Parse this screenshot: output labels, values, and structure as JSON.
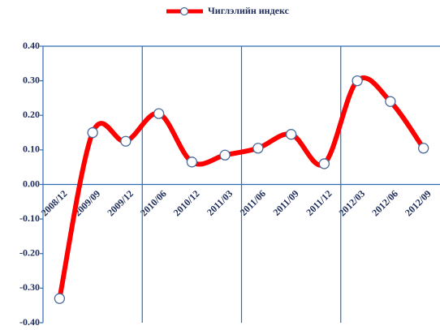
{
  "chart_data": {
    "type": "line",
    "categories": [
      "2008/12",
      "2009/09",
      "2009/12",
      "2010/06",
      "2010/12",
      "2011/03",
      "2011/06",
      "2011/09",
      "2011/12",
      "2012/03",
      "2012/06",
      "2012/09"
    ],
    "series": [
      {
        "name": "Чиглэлийн индекс",
        "color": "#ff0000",
        "values": [
          -0.33,
          0.15,
          0.125,
          0.205,
          0.065,
          0.085,
          0.105,
          0.145,
          0.06,
          0.3,
          0.24,
          0.105
        ]
      }
    ],
    "ylim": [
      -0.4,
      0.4
    ],
    "yticks": [
      {
        "value": -0.4,
        "label": "-0.40"
      },
      {
        "value": -0.3,
        "label": "-0.30"
      },
      {
        "value": -0.2,
        "label": "-0.20"
      },
      {
        "value": -0.1,
        "label": "-0.10"
      },
      {
        "value": 0,
        "label": "0.00"
      },
      {
        "value": 0.1,
        "label": "0.10"
      },
      {
        "value": 0.2,
        "label": "0.20"
      },
      {
        "value": 0.3,
        "label": "0.30"
      },
      {
        "value": 0.4,
        "label": "0.40"
      }
    ],
    "legend": "top"
  }
}
